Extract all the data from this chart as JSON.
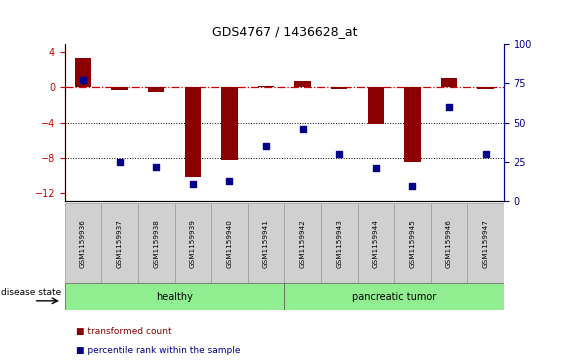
{
  "title": "GDS4767 / 1436628_at",
  "samples": [
    "GSM1159936",
    "GSM1159937",
    "GSM1159938",
    "GSM1159939",
    "GSM1159940",
    "GSM1159941",
    "GSM1159942",
    "GSM1159943",
    "GSM1159944",
    "GSM1159945",
    "GSM1159946",
    "GSM1159947"
  ],
  "transformed_count": [
    3.3,
    -0.3,
    -0.5,
    -10.2,
    -8.3,
    0.2,
    0.7,
    -0.2,
    -4.2,
    -8.5,
    1.1,
    -0.2
  ],
  "percentile_rank": [
    77,
    25,
    22,
    11,
    13,
    35,
    46,
    30,
    21,
    10,
    60,
    30
  ],
  "ylim_left": [
    -13,
    5
  ],
  "yticks_left": [
    4,
    0,
    -4,
    -8,
    -12
  ],
  "ylim_right": [
    0,
    100
  ],
  "yticks_right": [
    0,
    25,
    50,
    75,
    100
  ],
  "bar_color": "#8B0000",
  "dot_color": "#00008B",
  "ref_line_color": "#CC0000",
  "bar_width": 0.45
}
